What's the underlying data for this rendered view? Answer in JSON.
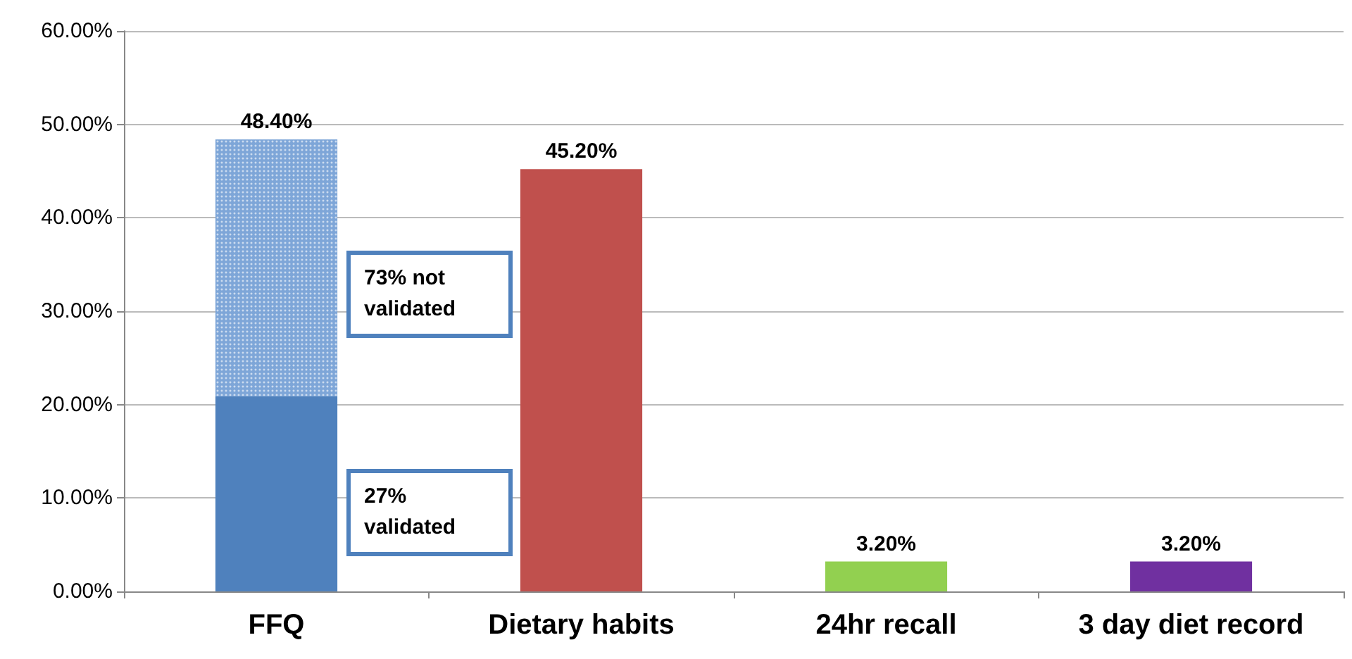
{
  "chart_data": {
    "type": "bar",
    "stacked": true,
    "categories": [
      "FFQ",
      "Dietary habits",
      "24hr recall",
      "3 day diet record"
    ],
    "series": [
      {
        "colors": [
          "#4f81bd",
          "#c0504d",
          "#92d050",
          "#7030a0"
        ],
        "values": [
          20.9,
          45.2,
          3.2,
          3.2
        ]
      },
      {
        "color": "#7ea6d8",
        "values": [
          27.5,
          null,
          null,
          null
        ]
      }
    ],
    "totals": [
      "48.40%",
      "45.20%",
      "3.20%",
      "3.20%"
    ],
    "annotations": [
      "73% not validated",
      "27% validated"
    ],
    "ylim": [
      0,
      60
    ],
    "yticks": [
      {
        "value": 0,
        "label": "0.00%"
      },
      {
        "value": 10,
        "label": "10.00%"
      },
      {
        "value": 20,
        "label": "20.00%"
      },
      {
        "value": 30,
        "label": "30.00%"
      },
      {
        "value": 40,
        "label": "40.00%"
      },
      {
        "value": 50,
        "label": "50.00%"
      },
      {
        "value": 60,
        "label": "60.00%"
      }
    ],
    "grid": "y"
  }
}
